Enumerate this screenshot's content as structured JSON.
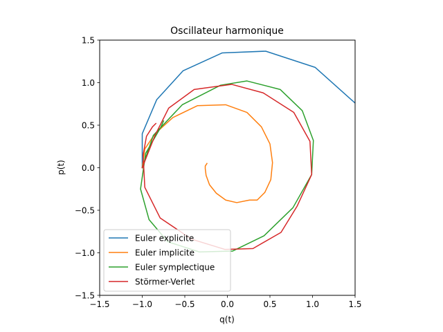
{
  "chart_data": {
    "type": "line",
    "title": "Oscillateur harmonique",
    "xlabel": "q(t)",
    "ylabel": "p(t)",
    "xlim": [
      -1.5,
      1.5
    ],
    "ylim": [
      -1.5,
      1.5
    ],
    "xticks": [
      "−1.5",
      "−1.0",
      "−0.5",
      "0.0",
      "0.5",
      "1.0",
      "1.5"
    ],
    "yticks": [
      "−1.5",
      "−1.0",
      "−0.5",
      "0.0",
      "0.5",
      "1.0",
      "1.5"
    ],
    "xtick_values": [
      -1.5,
      -1.0,
      -0.5,
      0.0,
      0.5,
      1.0,
      1.5
    ],
    "ytick_values": [
      -1.5,
      -1.0,
      -0.5,
      0.0,
      0.5,
      1.0,
      1.5
    ],
    "grid": false,
    "legend_position": "lower-left",
    "series": [
      {
        "name": "Euler explicite",
        "color": "#1f77b4",
        "x": [
          -1.0,
          -1.0,
          -0.83,
          -0.52,
          -0.06,
          0.45,
          1.03,
          1.5
        ],
        "y": [
          0.0,
          0.4,
          0.8,
          1.14,
          1.35,
          1.37,
          1.18,
          0.76
        ]
      },
      {
        "name": "Euler implicite",
        "color": "#ff7f0e",
        "x": [
          -1.0,
          -0.97,
          -0.85,
          -0.64,
          -0.35,
          -0.02,
          0.23,
          0.4,
          0.5,
          0.53,
          0.51,
          0.44,
          0.35,
          0.26,
          0.11,
          -0.02,
          -0.13,
          -0.21,
          -0.25,
          -0.26,
          -0.26,
          -0.24
        ],
        "y": [
          0.0,
          0.22,
          0.4,
          0.59,
          0.73,
          0.74,
          0.65,
          0.48,
          0.28,
          0.06,
          -0.14,
          -0.29,
          -0.38,
          -0.38,
          -0.41,
          -0.38,
          -0.3,
          -0.2,
          -0.09,
          -0.01,
          0.02,
          0.05
        ]
      },
      {
        "name": "Euler symplectique",
        "color": "#2ca02c",
        "x": [
          -1.0,
          -0.87,
          -0.53,
          -0.08,
          0.23,
          0.62,
          0.88,
          1.01,
          0.99,
          0.77,
          0.43,
          0.06,
          -0.33,
          -0.7,
          -0.92,
          -1.02,
          -0.96,
          -0.78,
          -0.75
        ],
        "y": [
          0.0,
          0.38,
          0.74,
          0.97,
          1.02,
          0.92,
          0.67,
          0.32,
          -0.08,
          -0.47,
          -0.8,
          -0.98,
          -0.99,
          -0.87,
          -0.61,
          -0.25,
          0.17,
          0.48,
          0.55
        ],
        "note": ""
      },
      {
        "name": "Störmer-Verlet",
        "color": "#d62728",
        "x": [
          -1.0,
          -0.85,
          -0.69,
          -0.39,
          0.05,
          0.42,
          0.78,
          0.97,
          0.99,
          0.82,
          0.63,
          0.3,
          -0.03,
          -0.42,
          -0.79,
          -0.97,
          -0.99,
          -0.95,
          -0.88,
          -0.84
        ],
        "y": [
          0.0,
          0.38,
          0.7,
          0.92,
          0.98,
          0.88,
          0.65,
          0.31,
          -0.08,
          -0.45,
          -0.76,
          -0.95,
          -0.96,
          -0.84,
          -0.59,
          -0.23,
          0.15,
          0.37,
          0.48,
          0.52
        ]
      }
    ]
  }
}
